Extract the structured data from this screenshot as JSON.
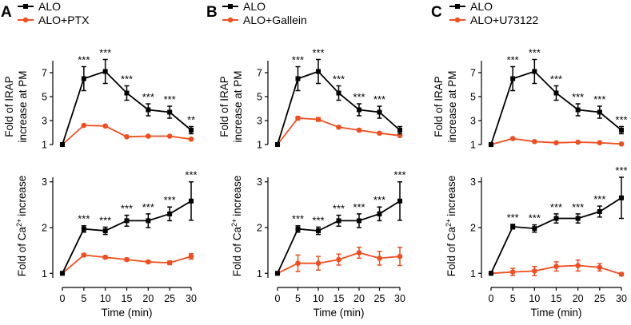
{
  "chart_data": {
    "type": "line",
    "x": [
      0,
      5,
      10,
      15,
      20,
      25,
      30
    ],
    "x_ticks": [
      "0",
      "5",
      "10",
      "15",
      "20",
      "25",
      "30"
    ],
    "xlabel": "Time (min)",
    "xlim": [
      0,
      30
    ],
    "series_colors": {
      "ALO": "#000000",
      "treatment": "#f04e1e"
    },
    "top_ylabel": [
      "Fold of IRAP",
      "increase at PM"
    ],
    "top_ylim": [
      1,
      8
    ],
    "top_y_ticks": [
      "1",
      "3",
      "5",
      "7"
    ],
    "bottom_ylabel_prefix": "Fold of Ca",
    "bottom_ylabel_sup": "2+",
    "bottom_ylabel_suffix": "increase",
    "bottom_ylim": [
      0.9,
      3.1
    ],
    "bottom_y_ticks": [
      "1",
      "2",
      "3"
    ],
    "panels": [
      {
        "letter": "A",
        "legend": [
          "ALO",
          "ALO+PTX"
        ],
        "top": {
          "series": [
            {
              "name": "ALO",
              "values": [
                1.0,
                6.5,
                7.1,
                5.3,
                3.9,
                3.7,
                2.2
              ],
              "errors": [
                0,
                1.0,
                1.0,
                0.6,
                0.5,
                0.5,
                0.3
              ]
            },
            {
              "name": "ALO+PTX",
              "values": [
                1.0,
                2.6,
                2.55,
                1.65,
                1.7,
                1.7,
                1.45
              ],
              "errors": [
                0,
                0,
                0,
                0,
                0,
                0,
                0
              ]
            }
          ],
          "significance": [
            "",
            "***",
            "***",
            "***",
            "***",
            "***",
            "**"
          ]
        },
        "bottom": {
          "series": [
            {
              "name": "ALO",
              "values": [
                1.0,
                1.97,
                1.93,
                2.15,
                2.15,
                2.3,
                2.58
              ],
              "errors": [
                0,
                0.07,
                0.08,
                0.12,
                0.15,
                0.15,
                0.42
              ]
            },
            {
              "name": "ALO+PTX",
              "values": [
                1.0,
                1.4,
                1.35,
                1.3,
                1.25,
                1.23,
                1.37
              ],
              "errors": [
                0,
                0.03,
                0.03,
                0.03,
                0.03,
                0.04,
                0.06
              ]
            }
          ],
          "significance": [
            "",
            "***",
            "***",
            "***",
            "***",
            "***",
            "***"
          ]
        }
      },
      {
        "letter": "B",
        "legend": [
          "ALO",
          "ALO+Gallein"
        ],
        "top": {
          "series": [
            {
              "name": "ALO",
              "values": [
                1.0,
                6.5,
                7.1,
                5.3,
                3.9,
                3.7,
                2.2
              ],
              "errors": [
                0,
                1.0,
                1.0,
                0.6,
                0.5,
                0.5,
                0.3
              ]
            },
            {
              "name": "ALO+Gallein",
              "values": [
                1.0,
                3.2,
                3.1,
                2.45,
                2.2,
                1.95,
                1.75
              ],
              "errors": [
                0,
                0.15,
                0.15,
                0.1,
                0.08,
                0.08,
                0.06
              ]
            }
          ],
          "significance": [
            "",
            "***",
            "***",
            "***",
            "***",
            "***",
            ""
          ]
        },
        "bottom": {
          "series": [
            {
              "name": "ALO",
              "values": [
                1.0,
                1.97,
                1.93,
                2.15,
                2.15,
                2.3,
                2.58
              ],
              "errors": [
                0,
                0.07,
                0.08,
                0.12,
                0.15,
                0.15,
                0.42
              ]
            },
            {
              "name": "ALO+Gallein",
              "values": [
                1.0,
                1.22,
                1.22,
                1.3,
                1.45,
                1.33,
                1.37
              ],
              "errors": [
                0,
                0.18,
                0.15,
                0.12,
                0.12,
                0.15,
                0.2
              ]
            }
          ],
          "significance": [
            "",
            "***",
            "***",
            "***",
            "***",
            "***",
            "***"
          ]
        }
      },
      {
        "letter": "C",
        "legend": [
          "ALO",
          "ALO+U73122"
        ],
        "top": {
          "series": [
            {
              "name": "ALO",
              "values": [
                1.0,
                6.5,
                7.1,
                5.3,
                3.9,
                3.7,
                2.2
              ],
              "errors": [
                0,
                1.0,
                1.0,
                0.6,
                0.5,
                0.5,
                0.3
              ]
            },
            {
              "name": "ALO+U73122",
              "values": [
                1.0,
                1.5,
                1.25,
                1.15,
                1.2,
                1.15,
                1.05
              ],
              "errors": [
                0,
                0,
                0,
                0,
                0,
                0,
                0
              ]
            }
          ],
          "significance": [
            "",
            "***",
            "***",
            "***",
            "***",
            "***",
            "***"
          ]
        },
        "bottom": {
          "series": [
            {
              "name": "ALO",
              "values": [
                1.0,
                2.02,
                1.98,
                2.2,
                2.2,
                2.35,
                2.65
              ],
              "errors": [
                0,
                0.05,
                0.08,
                0.1,
                0.1,
                0.12,
                0.45
              ]
            },
            {
              "name": "ALO+U73122",
              "values": [
                1.0,
                1.03,
                1.05,
                1.15,
                1.17,
                1.13,
                0.98
              ],
              "errors": [
                0,
                0.08,
                0.1,
                0.1,
                0.12,
                0.08,
                0.03
              ]
            }
          ],
          "significance": [
            "",
            "***",
            "***",
            "***",
            "***",
            "***",
            "***"
          ]
        }
      }
    ]
  }
}
